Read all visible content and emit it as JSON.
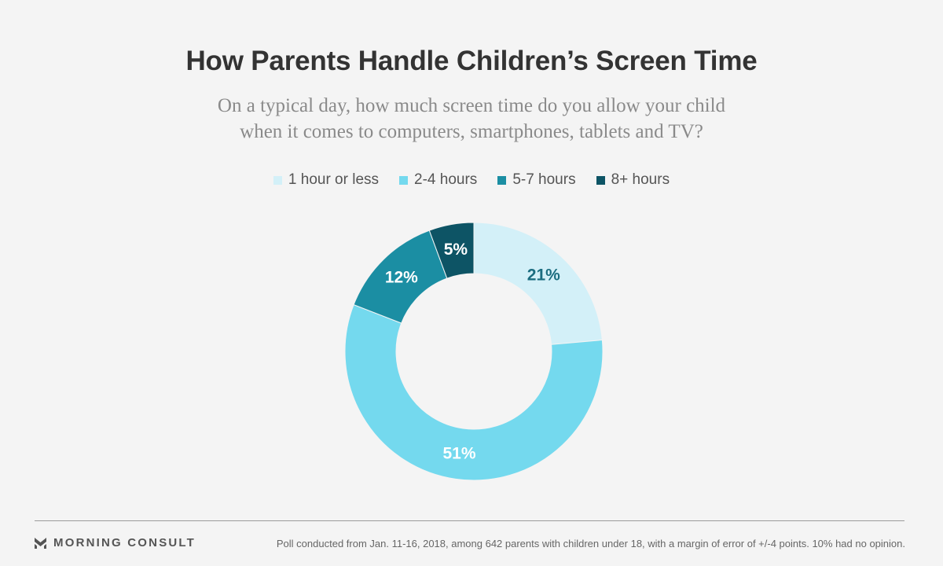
{
  "header": {
    "title": "How Parents Handle Children’s Screen Time",
    "subtitle": "On a typical day, how much screen time do you allow your child when it comes to computers, smartphones, tablets and TV?"
  },
  "chart_data": {
    "type": "pie",
    "variant": "donut",
    "categories": [
      "1 hour or less",
      "2-4 hours",
      "5-7 hours",
      "8+ hours"
    ],
    "values": [
      21,
      51,
      12,
      5
    ],
    "labels": [
      "21%",
      "51%",
      "12%",
      "5%"
    ],
    "colors": [
      "#d3f0f8",
      "#74d9ee",
      "#1b8ea3",
      "#0d5465"
    ],
    "label_colors": [
      "#1b6d80",
      "#ffffff",
      "#ffffff",
      "#ffffff"
    ],
    "legend_position": "top-center",
    "start": "12 o'clock",
    "direction": "clockwise"
  },
  "footer": {
    "brand": "MORNING CONSULT",
    "note": "Poll conducted from Jan. 11-16, 2018, among 642 parents with children under 18, with a margin of error of +/-4 points. 10% had no opinion."
  }
}
